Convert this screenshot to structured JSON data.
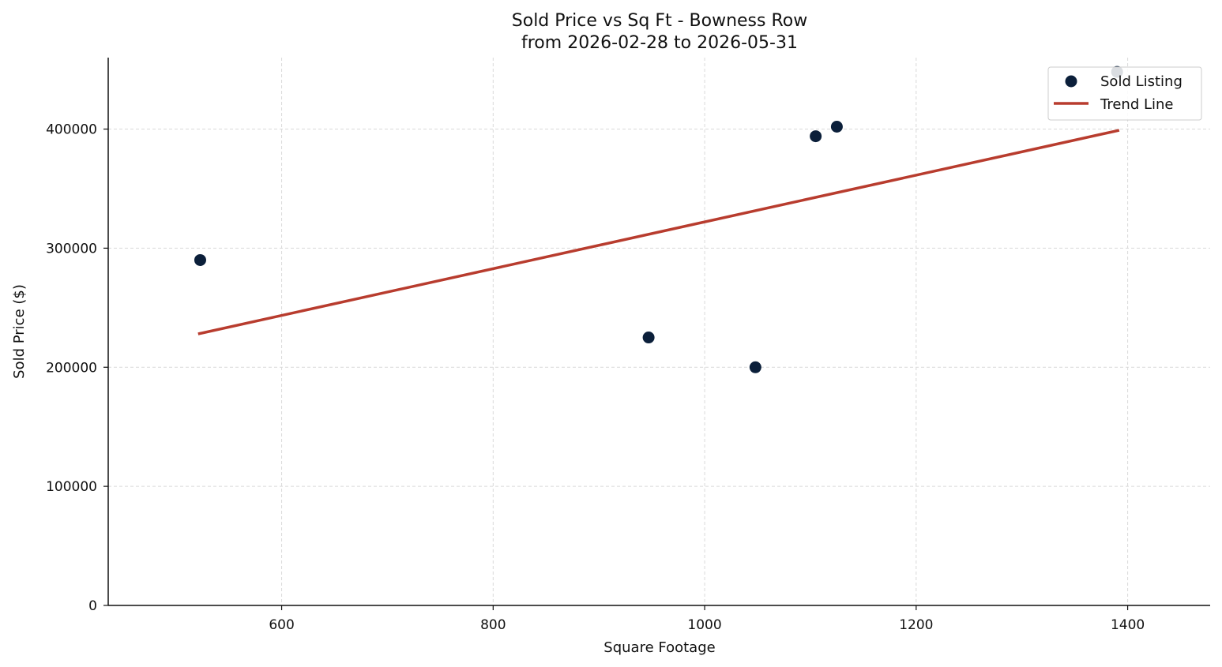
{
  "chart_data": {
    "type": "scatter",
    "title": "Sold Price vs Sq Ft - Bowness Row",
    "subtitle": "from 2026-02-28 to 2026-05-31",
    "xlabel": "Square Footage",
    "ylabel": "Sold Price ($)",
    "xlim": [
      436,
      1478
    ],
    "ylim": [
      0,
      460000
    ],
    "xticks": [
      600,
      800,
      1000,
      1200,
      1400
    ],
    "yticks": [
      0,
      100000,
      200000,
      300000,
      400000
    ],
    "xtick_labels": [
      "600",
      "800",
      "1000",
      "1200",
      "1400"
    ],
    "ytick_labels": [
      "0",
      "100000",
      "200000",
      "300000",
      "400000"
    ],
    "grid": true,
    "legend_position": "top-right",
    "series": [
      {
        "name": "Sold Listing",
        "type": "scatter",
        "color": "#0b1f3a",
        "points": [
          {
            "x": 523,
            "y": 290000
          },
          {
            "x": 947,
            "y": 225000
          },
          {
            "x": 1048,
            "y": 200000
          },
          {
            "x": 1105,
            "y": 394000
          },
          {
            "x": 1125,
            "y": 402000
          },
          {
            "x": 1390,
            "y": 448000
          }
        ]
      },
      {
        "name": "Trend Line",
        "type": "line",
        "color": "#b83c2e",
        "points": [
          {
            "x": 521,
            "y": 228000
          },
          {
            "x": 1392,
            "y": 399000
          }
        ]
      }
    ]
  }
}
